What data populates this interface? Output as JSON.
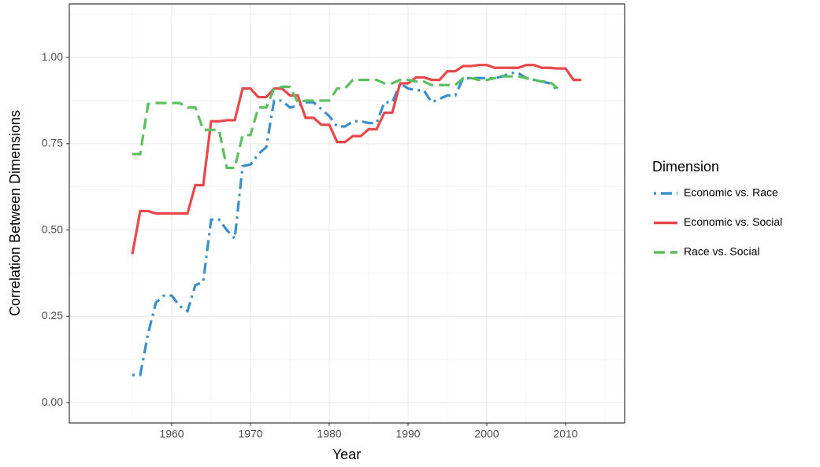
{
  "chart_data": {
    "type": "line",
    "x_label": "Year",
    "y_label": "Correlation Between Dimensions",
    "legend_title": "Dimension",
    "legend_position": "right",
    "grid": true,
    "xlim": [
      1947,
      2017.5
    ],
    "ylim": [
      -0.059,
      1.155
    ],
    "xticks": [
      1960,
      1970,
      1980,
      1990,
      2000,
      2010
    ],
    "yticks": [
      {
        "value": 0,
        "label": "0.00"
      },
      {
        "value": 0.25,
        "label": "0.25"
      },
      {
        "value": 0.5,
        "label": "0.50"
      },
      {
        "value": 0.75,
        "label": "0.75"
      },
      {
        "value": 1,
        "label": "1.00"
      }
    ],
    "x": [
      1955,
      1956,
      1957,
      1958,
      1959,
      1960,
      1961,
      1962,
      1963,
      1964,
      1965,
      1966,
      1967,
      1968,
      1969,
      1970,
      1971,
      1972,
      1973,
      1974,
      1975,
      1976,
      1977,
      1978,
      1979,
      1980,
      1981,
      1982,
      1983,
      1984,
      1985,
      1986,
      1987,
      1988,
      1989,
      1990,
      1991,
      1992,
      1993,
      1994,
      1995,
      1996,
      1997,
      1998,
      1999,
      2000,
      2001,
      2002,
      2003,
      2004,
      2005,
      2006,
      2007,
      2008,
      2009,
      2010,
      2011,
      2012
    ],
    "series": [
      {
        "name": "Economic vs. Race",
        "color": "#3a8fc9",
        "linetype": "dotdash",
        "values": [
          0.08,
          0.08,
          0.2,
          0.29,
          0.31,
          0.31,
          0.28,
          0.265,
          0.34,
          0.35,
          0.53,
          0.53,
          0.5,
          0.475,
          0.685,
          0.69,
          0.72,
          0.74,
          0.875,
          0.875,
          0.855,
          0.86,
          0.87,
          0.87,
          0.85,
          0.83,
          0.8,
          0.8,
          0.815,
          0.815,
          0.81,
          0.81,
          0.87,
          0.87,
          0.925,
          0.91,
          0.905,
          0.905,
          0.87,
          0.88,
          0.89,
          0.89,
          0.94,
          0.94,
          0.94,
          0.94,
          0.94,
          0.945,
          0.955,
          0.955,
          0.94,
          0.935,
          0.93,
          0.925,
          0.905,
          null,
          null,
          null
        ]
      },
      {
        "name": "Economic vs. Social",
        "color": "#e8484a",
        "linetype": "solid",
        "values": [
          0.43,
          0.555,
          0.555,
          0.548,
          0.548,
          0.548,
          0.548,
          0.548,
          0.63,
          0.63,
          0.815,
          0.815,
          0.818,
          0.818,
          0.91,
          0.91,
          0.885,
          0.885,
          0.91,
          0.91,
          0.89,
          0.89,
          0.825,
          0.825,
          0.805,
          0.805,
          0.755,
          0.755,
          0.772,
          0.772,
          0.792,
          0.792,
          0.84,
          0.84,
          0.925,
          0.925,
          0.942,
          0.942,
          0.935,
          0.935,
          0.96,
          0.96,
          0.975,
          0.975,
          0.978,
          0.978,
          0.97,
          0.97,
          0.97,
          0.97,
          0.978,
          0.978,
          0.97,
          0.97,
          0.968,
          0.968,
          0.935,
          0.935
        ]
      },
      {
        "name": "Race vs. Social",
        "color": "#5cbf5e",
        "linetype": "dashed",
        "values": [
          0.72,
          0.72,
          0.865,
          0.868,
          0.868,
          0.868,
          0.868,
          0.855,
          0.855,
          0.79,
          0.79,
          0.79,
          0.68,
          0.68,
          0.775,
          0.775,
          0.855,
          0.855,
          0.91,
          0.915,
          0.915,
          0.87,
          0.875,
          0.875,
          0.875,
          0.875,
          0.91,
          0.91,
          0.935,
          0.935,
          0.935,
          0.935,
          0.925,
          0.925,
          0.935,
          0.935,
          0.93,
          0.93,
          0.92,
          0.92,
          0.92,
          0.92,
          0.94,
          0.94,
          0.935,
          0.935,
          0.94,
          0.945,
          0.945,
          0.945,
          0.94,
          0.935,
          0.93,
          0.93,
          0.91,
          null,
          null,
          null
        ]
      }
    ]
  }
}
